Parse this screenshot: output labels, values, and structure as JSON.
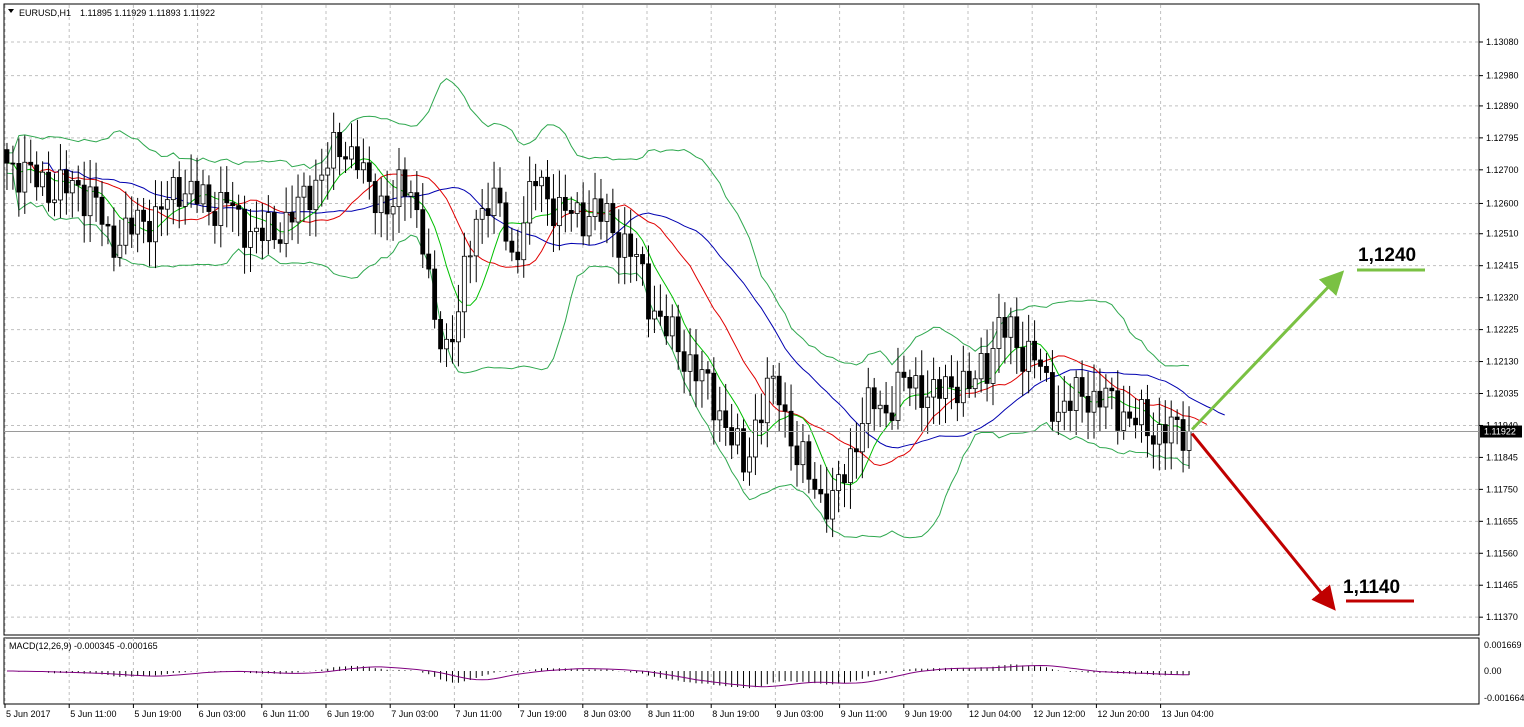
{
  "header": {
    "symbol": "EURUSD,H1",
    "ohlc": "1.11895 1.11929 1.11893 1.11922"
  },
  "macd": {
    "label": "MACD(12,26,9) -0.000345 -0.000165",
    "ticks": [
      "0.001669",
      "0.00",
      "-0.001664"
    ]
  },
  "current_price_label": "1.11922",
  "targets": {
    "up": "1,1240",
    "down": "1,1140",
    "up_color": "#7ac143",
    "down_color": "#c00000"
  },
  "colors": {
    "grid": "#c0c0c0",
    "ma_fast": "#00c000",
    "ma_mid": "#e00000",
    "ma_slow": "#0000b0",
    "bands": "#2fa84f",
    "macd_line": "#800080"
  },
  "chart_data": {
    "type": "candlestick",
    "y_ticks": [
      1.1308,
      1.1298,
      1.1289,
      1.12795,
      1.127,
      1.126,
      1.1251,
      1.12415,
      1.1232,
      1.12225,
      1.1213,
      1.12035,
      1.1194,
      1.11845,
      1.1175,
      1.11655,
      1.1156,
      1.11465,
      1.1137
    ],
    "y_tick_labels": [
      "1.13080",
      "1.12980",
      "1.12890",
      "1.12795",
      "1.12700",
      "1.12600",
      "1.12510",
      "1.12415",
      "1.12320",
      "1.12225",
      "1.12130",
      "1.12035",
      "1.11940",
      "1.11845",
      "1.11750",
      "1.11655",
      "1.11560",
      "1.11465",
      "1.11370"
    ],
    "ylim": [
      1.1132,
      1.1319
    ],
    "x_labels": [
      "5 Jun 2017",
      "5 Jun 11:00",
      "5 Jun 19:00",
      "6 Jun 03:00",
      "6 Jun 11:00",
      "6 Jun 19:00",
      "7 Jun 03:00",
      "7 Jun 11:00",
      "7 Jun 19:00",
      "8 Jun 03:00",
      "8 Jun 11:00",
      "8 Jun 19:00",
      "9 Jun 03:00",
      "9 Jun 11:00",
      "9 Jun 19:00",
      "12 Jun 04:00",
      "12 Jun 12:00",
      "12 Jun 20:00",
      "13 Jun 04:00"
    ],
    "current_price": 1.11922,
    "target_up": 1.124,
    "target_down": 1.114,
    "close_series": [
      [
        0,
        1.1272
      ],
      [
        8,
        1.1264
      ],
      [
        12,
        1.1265
      ],
      [
        15,
        1.126
      ],
      [
        17,
        1.1249
      ],
      [
        19,
        1.125
      ],
      [
        22,
        1.1254
      ],
      [
        25,
        1.1256
      ],
      [
        29,
        1.1265
      ],
      [
        31,
        1.1264
      ],
      [
        34,
        1.1258
      ],
      [
        37,
        1.1262
      ],
      [
        39,
        1.1253
      ],
      [
        42,
        1.1252
      ],
      [
        45,
        1.125
      ],
      [
        48,
        1.1258
      ],
      [
        50,
        1.126
      ],
      [
        54,
        1.1273
      ],
      [
        57,
        1.1276
      ],
      [
        59,
        1.1275
      ],
      [
        61,
        1.1262
      ],
      [
        64,
        1.126
      ],
      [
        66,
        1.1263
      ],
      [
        68,
        1.1264
      ],
      [
        70,
        1.1251
      ],
      [
        72,
        1.1222
      ],
      [
        74,
        1.1217
      ],
      [
        76,
        1.123
      ],
      [
        79,
        1.1254
      ],
      [
        81,
        1.1263
      ],
      [
        83,
        1.1258
      ],
      [
        85,
        1.1242
      ],
      [
        87,
        1.1256
      ],
      [
        89,
        1.1267
      ],
      [
        91,
        1.1262
      ],
      [
        93,
        1.1258
      ],
      [
        96,
        1.1256
      ],
      [
        99,
        1.1258
      ],
      [
        101,
        1.1255
      ],
      [
        103,
        1.125
      ],
      [
        106,
        1.1243
      ],
      [
        108,
        1.1232
      ],
      [
        110,
        1.1225
      ],
      [
        112,
        1.122
      ],
      [
        114,
        1.1215
      ],
      [
        116,
        1.121
      ],
      [
        118,
        1.1205
      ],
      [
        120,
        1.1198
      ],
      [
        122,
        1.119
      ],
      [
        124,
        1.1182
      ],
      [
        126,
        1.1194
      ],
      [
        128,
        1.1204
      ],
      [
        130,
        1.1205
      ],
      [
        131,
        1.1197
      ],
      [
        133,
        1.1184
      ],
      [
        135,
        1.118
      ],
      [
        137,
        1.1173
      ],
      [
        139,
        1.117
      ],
      [
        140,
        1.1176
      ],
      [
        142,
        1.1185
      ],
      [
        144,
        1.1196
      ],
      [
        146,
        1.1201
      ],
      [
        148,
        1.1198
      ],
      [
        150,
        1.1205
      ],
      [
        152,
        1.1207
      ],
      [
        154,
        1.1205
      ],
      [
        156,
        1.1202
      ],
      [
        158,
        1.1206
      ],
      [
        160,
        1.1207
      ],
      [
        162,
        1.1204
      ],
      [
        164,
        1.1212
      ],
      [
        165,
        1.1213
      ],
      [
        167,
        1.1222
      ],
      [
        169,
        1.1222
      ],
      [
        171,
        1.1216
      ],
      [
        173,
        1.1214
      ],
      [
        175,
        1.1206
      ],
      [
        177,
        1.1198
      ],
      [
        179,
        1.12
      ],
      [
        181,
        1.1205
      ],
      [
        183,
        1.1201
      ],
      [
        185,
        1.1202
      ],
      [
        187,
        1.1199
      ],
      [
        189,
        1.1196
      ],
      [
        191,
        1.1195
      ],
      [
        193,
        1.11922
      ]
    ]
  }
}
